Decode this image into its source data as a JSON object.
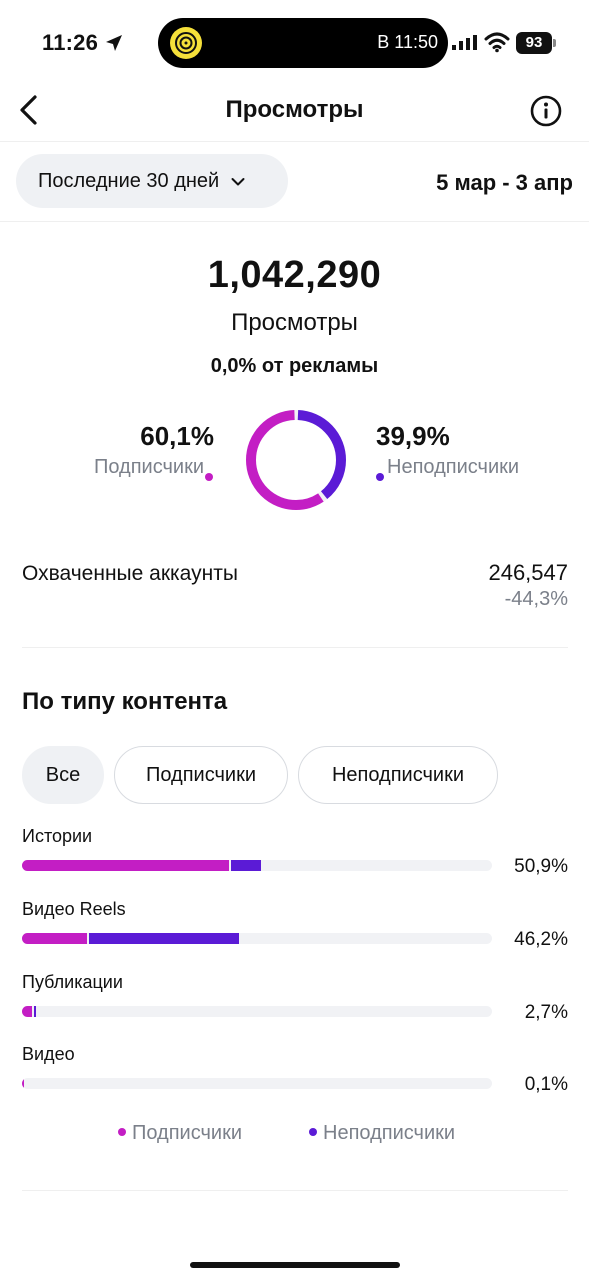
{
  "status_bar": {
    "time": "11:26",
    "island_text": "В 11:50",
    "battery": "93"
  },
  "nav": {
    "title": "Просмотры",
    "back_icon": "chevron-left-icon",
    "info_icon": "info-icon"
  },
  "range": {
    "selector_label": "Последние 30 дней",
    "dates": "5 мар - 3 апр"
  },
  "summary": {
    "total": "1,042,290",
    "total_label": "Просмотры",
    "ads_label": "0,0% от рекламы",
    "followers_pct": "60,1%",
    "followers_label": "Подписчики",
    "nonfollowers_pct": "39,9%",
    "nonfollowers_label": "Неподписчики",
    "followers_fraction": 0.601,
    "nonfollowers_fraction": 0.399
  },
  "reach": {
    "label": "Охваченные аккаунты",
    "value": "246,547",
    "change": "-44,3%"
  },
  "content_type": {
    "title": "По типу контента",
    "chips": [
      {
        "label": "Все",
        "active": true
      },
      {
        "label": "Подписчики",
        "active": false
      },
      {
        "label": "Неподписчики",
        "active": false
      }
    ],
    "rows": [
      {
        "name": "Истории",
        "pct": "50,9%",
        "followers": 0.44,
        "nonfollowers": 0.069
      },
      {
        "name": "Видео Reels",
        "pct": "46,2%",
        "followers": 0.138,
        "nonfollowers": 0.324
      },
      {
        "name": "Публикации",
        "pct": "2,7%",
        "followers": 0.022,
        "nonfollowers": 0.005
      },
      {
        "name": "Видео",
        "pct": "0,1%",
        "followers": 0.001,
        "nonfollowers": 0.0
      }
    ],
    "legend": {
      "followers": "Подписчики",
      "nonfollowers": "Неподписчики"
    }
  },
  "colors": {
    "followers": "#c31ec4",
    "nonfollowers": "#5b1bd6",
    "muted": "#7b808a"
  }
}
